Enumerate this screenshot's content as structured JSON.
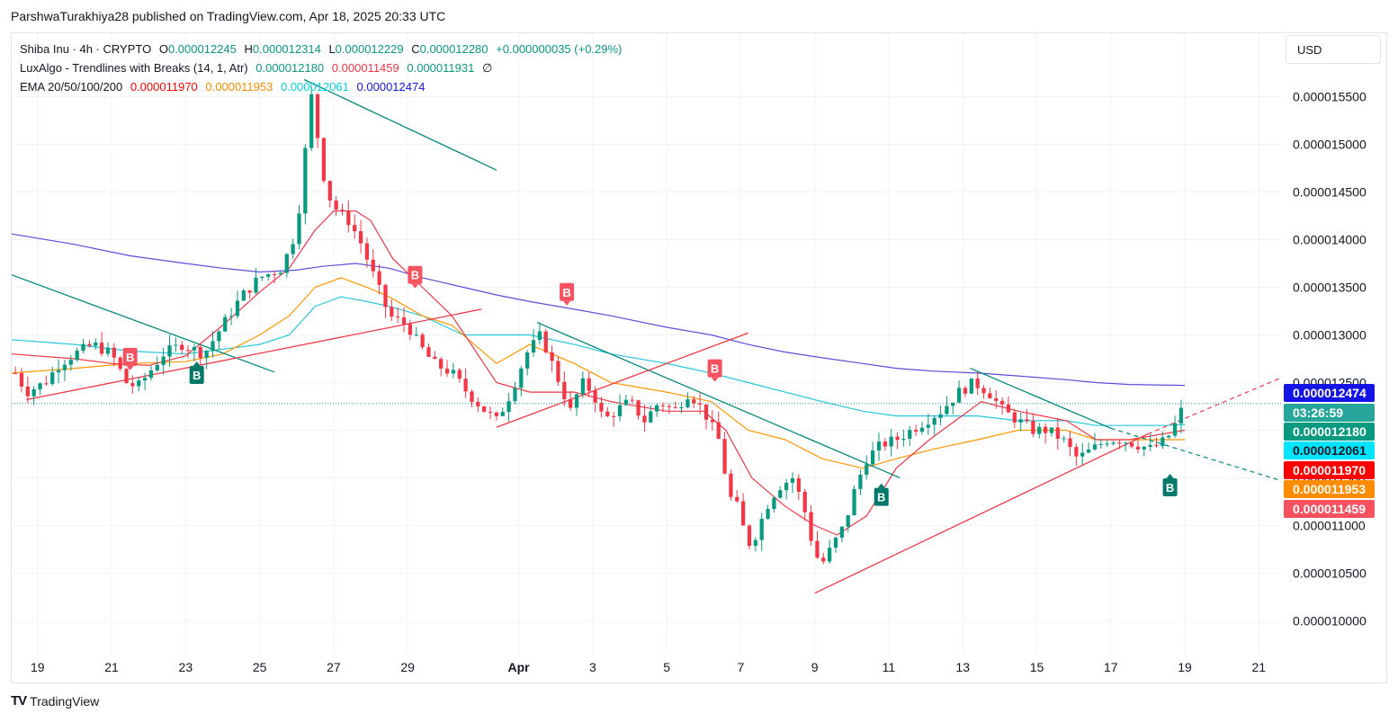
{
  "header": {
    "published": "ParshwaTurakhiya28 published on TradingView.com, Apr 18, 2025 20:33 UTC"
  },
  "legend": {
    "symbol": "Shiba Inu · 4h · CRYPTO",
    "o_label": "O",
    "o": "0.000012245",
    "h_label": "H",
    "h": "0.000012314",
    "l_label": "L",
    "l": "0.000012229",
    "c_label": "C",
    "c": "0.000012280",
    "change": "+0.000000035 (+0.29%)",
    "lux_name": "LuxAlgo - Trendlines with Breaks (14, 1, Atr)",
    "lux_v1": "0.000012180",
    "lux_v2": "0.000011459",
    "lux_v3": "0.000011931",
    "lux_sym": "∅",
    "ema_name": "EMA 20/50/100/200",
    "ema20": "0.000011970",
    "ema50": "0.000011953",
    "ema100": "0.000012061",
    "ema200": "0.000012474"
  },
  "currency": "USD",
  "badges": [
    {
      "text": "0.000012474",
      "color": "#1414e6",
      "price": 1.2474
    },
    {
      "text": "03:26:59",
      "color": "#26a69a",
      "price": 1.228
    },
    {
      "text": "0.000012180",
      "color": "#089981",
      "price": 1.218
    },
    {
      "text": "0.000012061",
      "color": "#00e5ff",
      "price": 1.2061,
      "dark_text": true
    },
    {
      "text": "0.000011970",
      "color": "#ff0000",
      "price": 1.197
    },
    {
      "text": "0.000011953",
      "color": "#ff8c00",
      "price": 1.1953
    },
    {
      "text": "0.000011459",
      "color": "#f7525f",
      "price": 1.1459
    }
  ],
  "colors": {
    "up": "#089981",
    "down": "#f23645",
    "ema20": "#f23645",
    "ema50": "#ff9800",
    "ema100": "#26c6da",
    "ema200": "#5b4ddb",
    "trend_up": "#f23645",
    "trend_down": "#00897b",
    "grid": "#f0f3fa"
  },
  "footer": {
    "logo": "TV",
    "brand": "TradingView"
  },
  "chart_data": {
    "type": "candlestick",
    "symbol": "Shiba Inu · 4h · CRYPTO",
    "price_unit": "×1e-5 USD",
    "y_ticks": [
      "0.000010000",
      "0.000010500",
      "0.000011000",
      "0.000011500",
      "0.000012000",
      "0.000012500",
      "0.000013000",
      "0.000013500",
      "0.000014000",
      "0.000014500",
      "0.000015000",
      "0.000015500"
    ],
    "y_tick_values": [
      1.0,
      1.05,
      1.1,
      1.15,
      1.2,
      1.25,
      1.3,
      1.35,
      1.4,
      1.45,
      1.5,
      1.55
    ],
    "ylim": [
      0.9645,
      1.6166
    ],
    "x_ticks": [
      "19",
      "21",
      "23",
      "25",
      "27",
      "29",
      "Apr",
      "3",
      "5",
      "7",
      "9",
      "11",
      "13",
      "15",
      "17",
      "19",
      "21"
    ],
    "x_tick_days": [
      0,
      2,
      4,
      6,
      8,
      10,
      13,
      15,
      17,
      19,
      21,
      23,
      25,
      27,
      29,
      31,
      33
    ],
    "xlim": [
      -0.7,
      33.6
    ],
    "close_path": [
      [
        -0.6,
        1.26
      ],
      [
        -0.3,
        1.24
      ],
      [
        0.2,
        1.25
      ],
      [
        0.6,
        1.27
      ],
      [
        1.0,
        1.28
      ],
      [
        1.5,
        1.29
      ],
      [
        2.0,
        1.28
      ],
      [
        2.4,
        1.25
      ],
      [
        2.7,
        1.245
      ],
      [
        3.0,
        1.26
      ],
      [
        3.4,
        1.28
      ],
      [
        3.9,
        1.29
      ],
      [
        4.2,
        1.285
      ],
      [
        4.5,
        1.28
      ],
      [
        5.0,
        1.31
      ],
      [
        5.5,
        1.34
      ],
      [
        6.0,
        1.36
      ],
      [
        6.6,
        1.37
      ],
      [
        6.9,
        1.4
      ],
      [
        7.1,
        1.44
      ],
      [
        7.3,
        1.52
      ],
      [
        7.4,
        1.55
      ],
      [
        7.6,
        1.5
      ],
      [
        7.8,
        1.45
      ],
      [
        8.1,
        1.43
      ],
      [
        8.4,
        1.42
      ],
      [
        8.7,
        1.4
      ],
      [
        9.0,
        1.37
      ],
      [
        9.2,
        1.35
      ],
      [
        9.5,
        1.32
      ],
      [
        10.0,
        1.31
      ],
      [
        10.3,
        1.29
      ],
      [
        10.7,
        1.27
      ],
      [
        11.2,
        1.26
      ],
      [
        11.6,
        1.24
      ],
      [
        12.1,
        1.22
      ],
      [
        12.4,
        1.21
      ],
      [
        12.8,
        1.24
      ],
      [
        13.2,
        1.28
      ],
      [
        13.6,
        1.3
      ],
      [
        14.0,
        1.26
      ],
      [
        14.4,
        1.22
      ],
      [
        14.7,
        1.25
      ],
      [
        15.0,
        1.24
      ],
      [
        15.3,
        1.21
      ],
      [
        15.6,
        1.22
      ],
      [
        16.0,
        1.23
      ],
      [
        16.4,
        1.21
      ],
      [
        16.8,
        1.23
      ],
      [
        17.2,
        1.22
      ],
      [
        17.6,
        1.24
      ],
      [
        18.0,
        1.22
      ],
      [
        18.4,
        1.19
      ],
      [
        18.7,
        1.13
      ],
      [
        18.9,
        1.12
      ],
      [
        19.2,
        1.08
      ],
      [
        19.4,
        1.09
      ],
      [
        19.7,
        1.12
      ],
      [
        20.0,
        1.14
      ],
      [
        20.4,
        1.15
      ],
      [
        20.7,
        1.12
      ],
      [
        21.0,
        1.07
      ],
      [
        21.2,
        1.06
      ],
      [
        21.5,
        1.08
      ],
      [
        21.8,
        1.1
      ],
      [
        22.1,
        1.14
      ],
      [
        22.4,
        1.17
      ],
      [
        22.8,
        1.185
      ],
      [
        23.2,
        1.19
      ],
      [
        23.6,
        1.2
      ],
      [
        24.0,
        1.21
      ],
      [
        24.4,
        1.22
      ],
      [
        24.9,
        1.24
      ],
      [
        25.3,
        1.25
      ],
      [
        25.7,
        1.24
      ],
      [
        26.1,
        1.22
      ],
      [
        26.5,
        1.21
      ],
      [
        26.9,
        1.2
      ],
      [
        27.3,
        1.2
      ],
      [
        27.7,
        1.19
      ],
      [
        28.1,
        1.17
      ],
      [
        28.5,
        1.18
      ],
      [
        28.9,
        1.19
      ],
      [
        29.3,
        1.19
      ],
      [
        29.7,
        1.185
      ],
      [
        30.1,
        1.18
      ],
      [
        30.5,
        1.19
      ],
      [
        30.8,
        1.21
      ],
      [
        31.0,
        1.23
      ]
    ],
    "ema20": [
      [
        -0.7,
        1.28
      ],
      [
        1,
        1.275
      ],
      [
        2,
        1.27
      ],
      [
        3,
        1.268
      ],
      [
        4,
        1.278
      ],
      [
        5,
        1.31
      ],
      [
        6,
        1.345
      ],
      [
        6.8,
        1.37
      ],
      [
        7.5,
        1.41
      ],
      [
        8,
        1.43
      ],
      [
        8.6,
        1.43
      ],
      [
        9,
        1.42
      ],
      [
        9.6,
        1.38
      ],
      [
        10.4,
        1.35
      ],
      [
        11.2,
        1.32
      ],
      [
        12.4,
        1.25
      ],
      [
        13.3,
        1.24
      ],
      [
        14.5,
        1.24
      ],
      [
        15.5,
        1.23
      ],
      [
        17,
        1.22
      ],
      [
        18,
        1.22
      ],
      [
        18.6,
        1.2
      ],
      [
        19.3,
        1.15
      ],
      [
        20.2,
        1.12
      ],
      [
        21,
        1.1
      ],
      [
        21.6,
        1.09
      ],
      [
        22.4,
        1.11
      ],
      [
        23.2,
        1.16
      ],
      [
        24.1,
        1.19
      ],
      [
        24.8,
        1.21
      ],
      [
        25.5,
        1.23
      ],
      [
        26.5,
        1.22
      ],
      [
        27.8,
        1.21
      ],
      [
        28.6,
        1.19
      ],
      [
        29.5,
        1.19
      ],
      [
        31,
        1.2
      ]
    ],
    "ema50": [
      [
        -0.7,
        1.26
      ],
      [
        1,
        1.265
      ],
      [
        2.5,
        1.27
      ],
      [
        4,
        1.272
      ],
      [
        5,
        1.28
      ],
      [
        6,
        1.3
      ],
      [
        6.8,
        1.32
      ],
      [
        7.5,
        1.35
      ],
      [
        8.2,
        1.36
      ],
      [
        8.9,
        1.35
      ],
      [
        9.5,
        1.34
      ],
      [
        10.4,
        1.32
      ],
      [
        11.2,
        1.31
      ],
      [
        12.4,
        1.27
      ],
      [
        13.3,
        1.29
      ],
      [
        14.5,
        1.27
      ],
      [
        15.5,
        1.25
      ],
      [
        17,
        1.24
      ],
      [
        18.2,
        1.23
      ],
      [
        19.2,
        1.2
      ],
      [
        20.2,
        1.19
      ],
      [
        21.2,
        1.17
      ],
      [
        22.3,
        1.16
      ],
      [
        23.2,
        1.17
      ],
      [
        24.2,
        1.18
      ],
      [
        25.4,
        1.19
      ],
      [
        26.5,
        1.2
      ],
      [
        27.8,
        1.2
      ],
      [
        28.6,
        1.19
      ],
      [
        29.5,
        1.19
      ],
      [
        31,
        1.19
      ]
    ],
    "ema100": [
      [
        -0.7,
        1.295
      ],
      [
        1,
        1.29
      ],
      [
        2.5,
        1.283
      ],
      [
        4,
        1.28
      ],
      [
        5,
        1.285
      ],
      [
        6,
        1.29
      ],
      [
        6.8,
        1.3
      ],
      [
        7.5,
        1.33
      ],
      [
        8.2,
        1.34
      ],
      [
        8.9,
        1.335
      ],
      [
        9.5,
        1.33
      ],
      [
        10.4,
        1.32
      ],
      [
        11.5,
        1.3
      ],
      [
        12.4,
        1.3
      ],
      [
        13.3,
        1.3
      ],
      [
        14.5,
        1.29
      ],
      [
        15.5,
        1.28
      ],
      [
        17,
        1.27
      ],
      [
        18.2,
        1.26
      ],
      [
        19.2,
        1.25
      ],
      [
        20.2,
        1.24
      ],
      [
        21.2,
        1.23
      ],
      [
        22.3,
        1.22
      ],
      [
        23.2,
        1.215
      ],
      [
        24.2,
        1.215
      ],
      [
        25.4,
        1.215
      ],
      [
        26.5,
        1.21
      ],
      [
        27.8,
        1.21
      ],
      [
        28.6,
        1.205
      ],
      [
        29.5,
        1.205
      ],
      [
        30.5,
        1.205
      ],
      [
        31,
        1.206
      ]
    ],
    "ema200": [
      [
        -0.7,
        1.406
      ],
      [
        1,
        1.395
      ],
      [
        2.5,
        1.383
      ],
      [
        4,
        1.375
      ],
      [
        5,
        1.37
      ],
      [
        6,
        1.366
      ],
      [
        7,
        1.368
      ],
      [
        7.7,
        1.372
      ],
      [
        8.6,
        1.375
      ],
      [
        9.5,
        1.37
      ],
      [
        10.4,
        1.36
      ],
      [
        11.5,
        1.35
      ],
      [
        12.4,
        1.342
      ],
      [
        13.3,
        1.335
      ],
      [
        14.5,
        1.327
      ],
      [
        15.5,
        1.32
      ],
      [
        17,
        1.308
      ],
      [
        18.2,
        1.3
      ],
      [
        19.2,
        1.29
      ],
      [
        20.2,
        1.282
      ],
      [
        21.2,
        1.276
      ],
      [
        22.3,
        1.27
      ],
      [
        23.2,
        1.265
      ],
      [
        24.2,
        1.262
      ],
      [
        25.4,
        1.26
      ],
      [
        26.5,
        1.257
      ],
      [
        27.8,
        1.253
      ],
      [
        28.6,
        1.25
      ],
      [
        29.5,
        1.248
      ],
      [
        31,
        1.247
      ]
    ],
    "trendlines_down": [
      [
        [
          -0.7,
          1.363
        ],
        [
          6.4,
          1.261
        ]
      ],
      [
        [
          7.2,
          1.568
        ],
        [
          12.4,
          1.473
        ]
      ],
      [
        [
          13.5,
          1.313
        ],
        [
          23.3,
          1.15
        ]
      ],
      [
        [
          25.2,
          1.265
        ],
        [
          29.0,
          1.202
        ]
      ]
    ],
    "trendlines_up": [
      [
        [
          -0.3,
          1.232
        ],
        [
          12.0,
          1.327
        ]
      ],
      [
        [
          12.4,
          1.203
        ],
        [
          19.2,
          1.302
        ]
      ],
      [
        [
          21.0,
          1.029
        ],
        [
          30.0,
          1.196
        ]
      ]
    ],
    "trendline_dashed": [
      [
        [
          29.0,
          1.202
        ],
        [
          33.6,
          1.147
        ]
      ],
      [
        [
          30.0,
          1.196
        ],
        [
          33.6,
          1.255
        ]
      ]
    ],
    "last_price_line": 1.228,
    "signals": [
      {
        "label": "B",
        "x": 2.5,
        "price": 1.277,
        "type": "sell"
      },
      {
        "label": "B",
        "x": 4.3,
        "price": 1.258,
        "type": "buy"
      },
      {
        "label": "B",
        "x": 10.2,
        "price": 1.363,
        "type": "sell"
      },
      {
        "label": "B",
        "x": 14.3,
        "price": 1.345,
        "type": "sell"
      },
      {
        "label": "B",
        "x": 18.3,
        "price": 1.265,
        "type": "sell"
      },
      {
        "label": "B",
        "x": 22.8,
        "price": 1.13,
        "type": "buy"
      },
      {
        "label": "B",
        "x": 30.6,
        "price": 1.14,
        "type": "buy"
      }
    ]
  }
}
